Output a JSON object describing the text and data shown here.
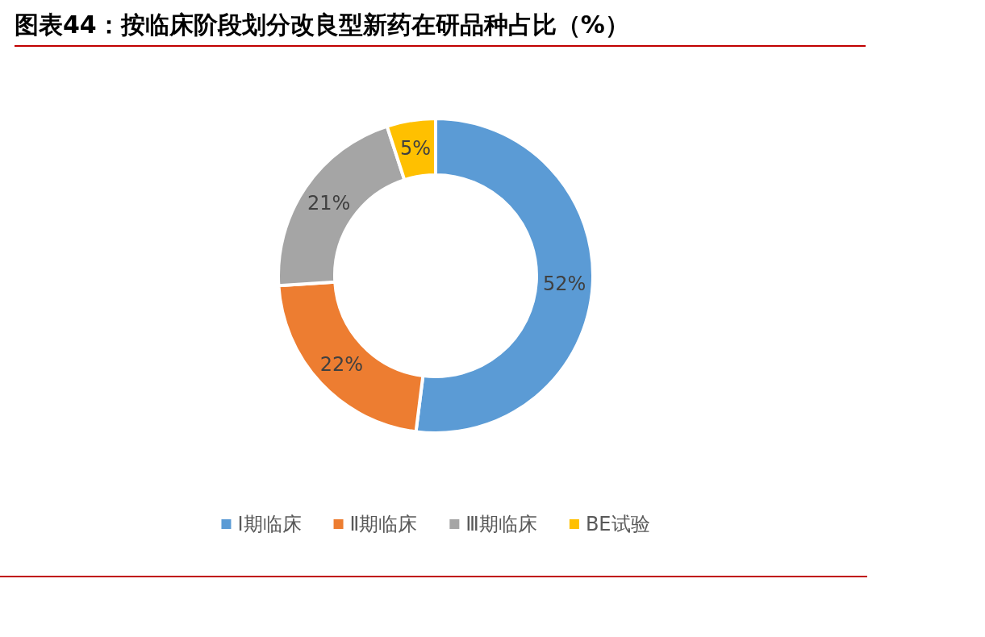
{
  "chart_data": {
    "type": "donut",
    "title": "图表44：按临床阶段划分改良型新药在研品种占比（%）",
    "categories": [
      "Ⅰ期临床",
      "Ⅱ期临床",
      "Ⅲ期临床",
      "BE试验"
    ],
    "values": [
      52,
      22,
      21,
      5
    ],
    "colors": [
      "#5b9bd5",
      "#ed7d31",
      "#a5a5a5",
      "#ffc000"
    ],
    "value_labels": [
      "52%",
      "22%",
      "21%",
      "5%"
    ],
    "legend": "bottom"
  }
}
